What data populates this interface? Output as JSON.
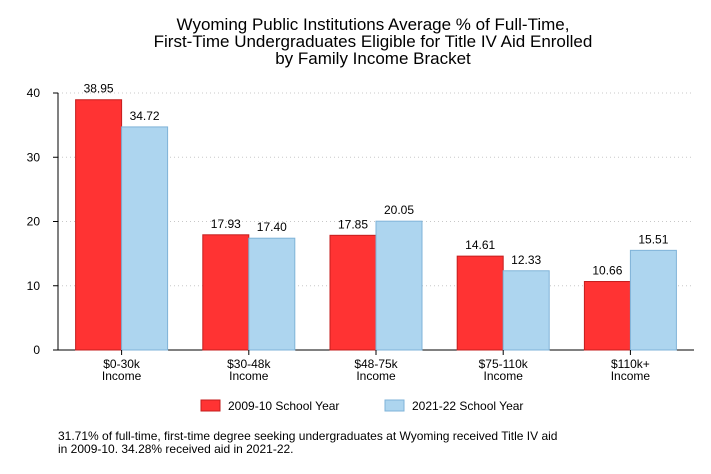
{
  "chart_data": {
    "type": "bar",
    "title_lines": [
      "Wyoming Public Institutions Average % of Full-Time,",
      "First-Time Undergraduates Eligible for Title IV Aid Enrolled",
      "by Family Income Bracket"
    ],
    "categories": [
      [
        "$0-30k",
        "Income"
      ],
      [
        "$30-48k",
        "Income"
      ],
      [
        "$48-75k",
        "Income"
      ],
      [
        "$75-110k",
        "Income"
      ],
      [
        "$110k+",
        "Income"
      ]
    ],
    "series": [
      {
        "name": "2009-10 School Year",
        "color": "#ff3333",
        "stroke": "#c41e1e",
        "values": [
          38.95,
          17.93,
          17.85,
          14.61,
          10.66
        ],
        "labels": [
          "38.95",
          "17.93",
          "17.85",
          "14.61",
          "10.66"
        ]
      },
      {
        "name": "2021-22 School Year",
        "color": "#add5ef",
        "stroke": "#7fb3d8",
        "values": [
          34.72,
          17.4,
          20.05,
          12.33,
          15.51
        ],
        "labels": [
          "34.72",
          "17.40",
          "20.05",
          "12.33",
          "15.51"
        ]
      }
    ],
    "yticks": [
      "0",
      "10",
      "20",
      "30",
      "40"
    ],
    "ylim": [
      0,
      40
    ],
    "grid": "horizontal dotted",
    "legend_position": "bottom"
  },
  "footnote": "31.71% of full-time, first-time degree seeking undergraduates at Wyoming received Title IV aid\nin 2009-10. 34.28% received aid in 2021-22."
}
